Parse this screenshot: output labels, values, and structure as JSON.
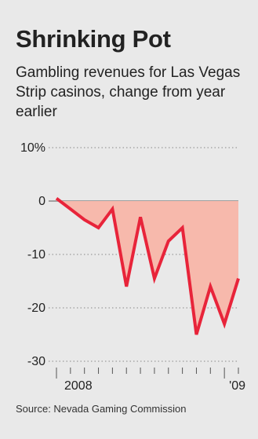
{
  "header": {
    "title": "Shrinking Pot",
    "subtitle": "Gambling revenues for Las Vegas Strip casinos, change from year earlier"
  },
  "footer": {
    "source": "Source: Nevada Gaming Commission"
  },
  "chart_data": {
    "type": "area",
    "title": "Shrinking Pot",
    "subtitle": "Gambling revenues for Las Vegas Strip casinos, change from year earlier",
    "xlabel": "",
    "ylabel": "",
    "x_unit": "month",
    "x": [
      "2008-01",
      "2008-02",
      "2008-03",
      "2008-04",
      "2008-05",
      "2008-06",
      "2008-07",
      "2008-08",
      "2008-09",
      "2008-10",
      "2008-11",
      "2008-12",
      "2009-01",
      "2009-02"
    ],
    "series": [
      {
        "values": [
          0.5,
          -1.5,
          -3.5,
          -5.0,
          -1.5,
          -16.0,
          -3.0,
          -14.5,
          -7.5,
          -5.0,
          -25.0,
          -16.0,
          -23.0,
          -14.5
        ]
      }
    ],
    "ylim": [
      -30,
      10
    ],
    "yticks": [
      10,
      0,
      -10,
      -20,
      -30
    ],
    "ytick_labels": [
      "10%",
      "0",
      "-10",
      "-20",
      "-30"
    ],
    "xtick_labels": [
      "2008",
      "'09"
    ],
    "grid": "dotted horizontal",
    "colors": {
      "line": "#e8243a",
      "fill": "#f7b9ac",
      "grid": "#888888"
    }
  }
}
